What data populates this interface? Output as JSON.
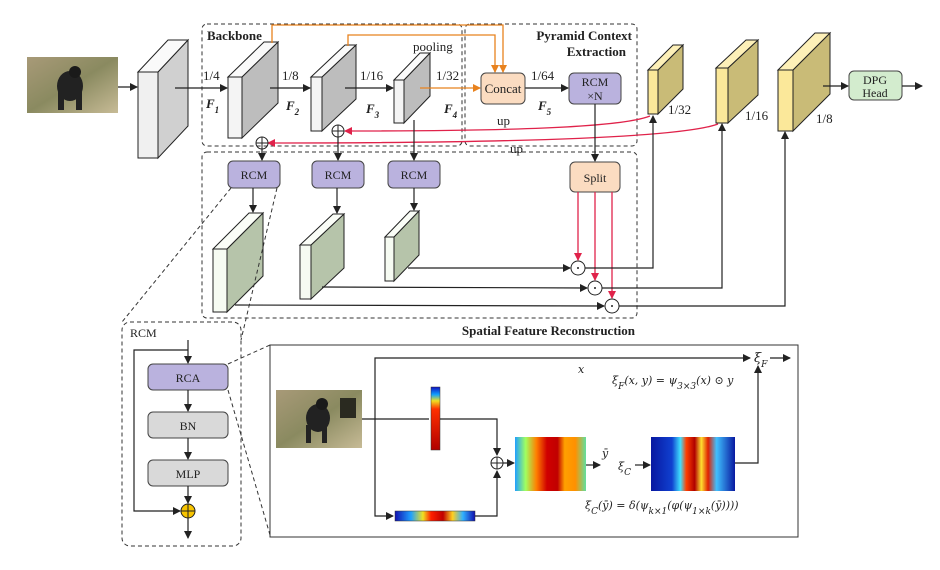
{
  "regions": {
    "backbone": "Backbone",
    "pce_line1": "Pyramid Context",
    "pce_line2": "Extraction",
    "sfr": "Spatial Feature Reconstruction"
  },
  "scales": {
    "s4": "1/4",
    "s8": "1/8",
    "s16": "1/16",
    "s32": "1/32",
    "s64": "1/64",
    "out32": "1/32",
    "out16": "1/16",
    "out8": "1/8"
  },
  "features": [
    {
      "base": "F",
      "sub": "1"
    },
    {
      "base": "F",
      "sub": "2"
    },
    {
      "base": "F",
      "sub": "3"
    },
    {
      "base": "F",
      "sub": "4"
    },
    {
      "base": "F",
      "sub": "5"
    }
  ],
  "labels": {
    "pooling": "pooling",
    "up1": "up",
    "up2": "up"
  },
  "boxes": {
    "concat": "Concat",
    "rcmN_1": "RCM",
    "rcmN_2": "×N",
    "rcm": "RCM",
    "split": "Split",
    "dpg_1": "DPG",
    "dpg_2": "Head"
  },
  "rcm_panel": {
    "title": "RCM",
    "rca": "RCA",
    "bn": "BN",
    "mlp": "MLP"
  },
  "detail": {
    "x_label": "x",
    "ybar_label": "ȳ",
    "xi_c": {
      "base": "ξ",
      "sub": "C"
    },
    "xi_f": {
      "base": "ξ",
      "sub": "F"
    },
    "formula_f": [
      "ξ",
      "F",
      "(x, y) = ψ",
      "3×3",
      "(x) ⊙ y"
    ],
    "formula_c": [
      "ξ",
      "C",
      "(ȳ) = δ(ψ",
      "k×1",
      "(φ(ψ",
      "1×k",
      "(ȳ))))"
    ]
  },
  "colors": {
    "backbone_bg": "#dbe4f6",
    "pce_bg": "#fbf0c6",
    "sfr_bg": "#e1efd5",
    "rcm_box": "#bab2de",
    "concat_box": "#fbdcc1",
    "dpg_box": "#d3ecce",
    "yellow_block": "#fbe89a",
    "up_arrow": "#e0224a",
    "pooling_arrow": "#e8821e"
  }
}
